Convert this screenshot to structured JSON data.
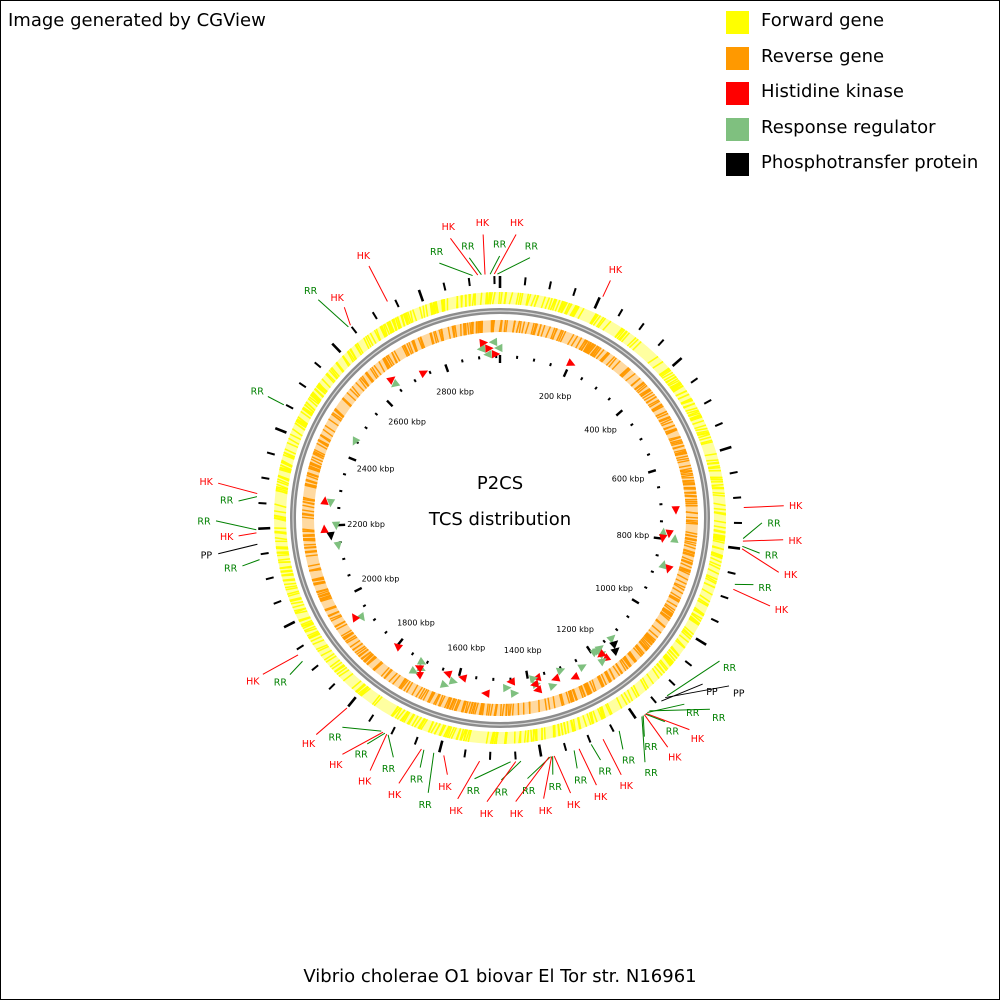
{
  "credit": "Image generated by CGView",
  "caption": "Vibrio cholerae O1 biovar El Tor str. N16961",
  "center_title": "P2CS",
  "center_subtitle": "TCS distribution",
  "colors": {
    "forward": "#ffff00",
    "reverse": "#ff9900",
    "hk": "#ff0000",
    "rr": "#7fc07f",
    "pp": "#000000",
    "hk_text": "#ff0000",
    "rr_text": "#008000",
    "pp_text": "#000000"
  },
  "legend": [
    {
      "label": "Forward gene",
      "color": "#ffff00"
    },
    {
      "label": "Reverse gene",
      "color": "#ff9900"
    },
    {
      "label": "Histidine kinase",
      "color": "#ff0000"
    },
    {
      "label": "Response regulator",
      "color": "#7fc07f"
    },
    {
      "label": "Phosphotransfer protein",
      "color": "#000000"
    }
  ],
  "type_labels": {
    "HK": "HK",
    "RR": "RR",
    "PP": "PP"
  },
  "genome_length_kbp": 2961,
  "tick_labels": [
    {
      "kbp": 200,
      "label": "200 kbp"
    },
    {
      "kbp": 400,
      "label": "400 kbp"
    },
    {
      "kbp": 600,
      "label": "600 kbp"
    },
    {
      "kbp": 800,
      "label": "800 kbp"
    },
    {
      "kbp": 1000,
      "label": "1000 kbp"
    },
    {
      "kbp": 1200,
      "label": "1200 kbp"
    },
    {
      "kbp": 1400,
      "label": "1400 kbp"
    },
    {
      "kbp": 1600,
      "label": "1600 kbp"
    },
    {
      "kbp": 1800,
      "label": "1800 kbp"
    },
    {
      "kbp": 2000,
      "label": "2000 kbp"
    },
    {
      "kbp": 2200,
      "label": "2200 kbp"
    },
    {
      "kbp": 2400,
      "label": "2400 kbp"
    },
    {
      "kbp": 2600,
      "label": "2600 kbp"
    },
    {
      "kbp": 2800,
      "label": "2800 kbp"
    }
  ],
  "features": [
    {
      "type": "HK",
      "kbp": 205
    },
    {
      "type": "HK",
      "kbp": 720
    },
    {
      "type": "RR",
      "kbp": 780
    },
    {
      "type": "HK",
      "kbp": 785
    },
    {
      "type": "RR",
      "kbp": 795
    },
    {
      "type": "HK",
      "kbp": 800
    },
    {
      "type": "RR",
      "kbp": 870
    },
    {
      "type": "HK",
      "kbp": 880
    },
    {
      "type": "RR",
      "kbp": 1125
    },
    {
      "type": "PP",
      "kbp": 1130
    },
    {
      "type": "PP",
      "kbp": 1140
    },
    {
      "type": "RR",
      "kbp": 1170
    },
    {
      "type": "RR",
      "kbp": 1175
    },
    {
      "type": "HK",
      "kbp": 1178
    },
    {
      "type": "RR",
      "kbp": 1180
    },
    {
      "type": "HK",
      "kbp": 1182
    },
    {
      "type": "RR",
      "kbp": 1185
    },
    {
      "type": "RR",
      "kbp": 1188
    },
    {
      "type": "RR",
      "kbp": 1240
    },
    {
      "type": "HK",
      "kbp": 1275
    },
    {
      "type": "RR",
      "kbp": 1300
    },
    {
      "type": "HK",
      "kbp": 1325
    },
    {
      "type": "RR",
      "kbp": 1335
    },
    {
      "type": "HK",
      "kbp": 1375
    },
    {
      "type": "RR",
      "kbp": 1378
    },
    {
      "type": "HK",
      "kbp": 1380
    },
    {
      "type": "RR",
      "kbp": 1382
    },
    {
      "type": "HK",
      "kbp": 1385
    },
    {
      "type": "RR",
      "kbp": 1440
    },
    {
      "type": "HK",
      "kbp": 1450
    },
    {
      "type": "RR",
      "kbp": 1460
    },
    {
      "type": "HK",
      "kbp": 1520
    },
    {
      "type": "HK",
      "kbp": 1590
    },
    {
      "type": "RR",
      "kbp": 1610
    },
    {
      "type": "RR",
      "kbp": 1630
    },
    {
      "type": "HK",
      "kbp": 1635
    },
    {
      "type": "RR",
      "kbp": 1705
    },
    {
      "type": "HK",
      "kbp": 1708
    },
    {
      "type": "RR",
      "kbp": 1712
    },
    {
      "type": "HK",
      "kbp": 1716
    },
    {
      "type": "RR",
      "kbp": 1720
    },
    {
      "type": "HK",
      "kbp": 1800
    },
    {
      "type": "RR",
      "kbp": 1925
    },
    {
      "type": "HK",
      "kbp": 1940
    },
    {
      "type": "RR",
      "kbp": 2140
    },
    {
      "type": "PP",
      "kbp": 2170
    },
    {
      "type": "HK",
      "kbp": 2192
    },
    {
      "type": "RR",
      "kbp": 2198
    },
    {
      "type": "RR",
      "kbp": 2262
    },
    {
      "type": "HK",
      "kbp": 2268
    },
    {
      "type": "RR",
      "kbp": 2448
    },
    {
      "type": "RR",
      "kbp": 2645
    },
    {
      "type": "HK",
      "kbp": 2650
    },
    {
      "type": "HK",
      "kbp": 2735
    },
    {
      "type": "RR",
      "kbp": 2908
    },
    {
      "type": "HK",
      "kbp": 2918
    },
    {
      "type": "RR",
      "kbp": 2925
    },
    {
      "type": "HK",
      "kbp": 2932
    },
    {
      "type": "RR",
      "kbp": 2942
    },
    {
      "type": "HK",
      "kbp": 2950
    },
    {
      "type": "RR",
      "kbp": 2956
    }
  ]
}
